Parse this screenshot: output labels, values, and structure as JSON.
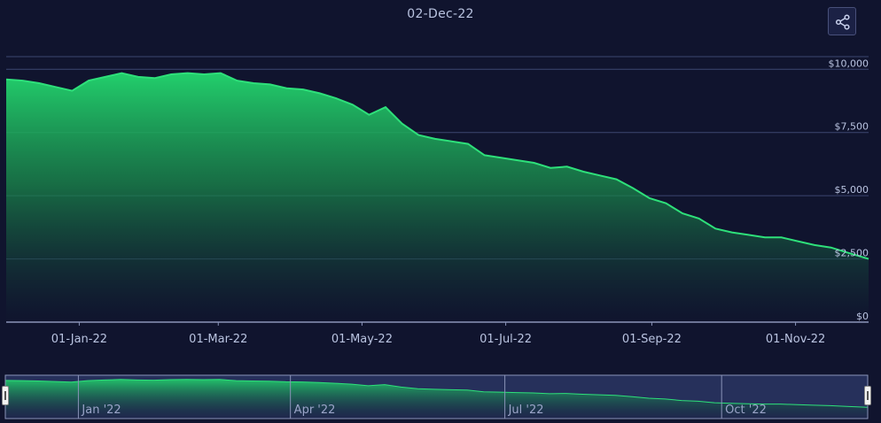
{
  "header": {
    "date_label": "02-Dec-22"
  },
  "toolbar": {
    "share_icon": "share-icon"
  },
  "colors": {
    "background": "#10142e",
    "line": "#2ee07a",
    "area_top": "#22cf6c",
    "grid": "#3c4670",
    "navigator_mask": "#2a3563"
  },
  "chart_data": {
    "type": "area",
    "title": "02-Dec-22",
    "y_ticks": [
      "$0",
      "$2,500",
      "$5,000",
      "$7,500",
      "$10,000"
    ],
    "ylim": [
      0,
      10500
    ],
    "x_ticks": [
      {
        "date": "2022-01-01",
        "label": "01-Jan-22"
      },
      {
        "date": "2022-03-01",
        "label": "01-Mar-22"
      },
      {
        "date": "2022-05-01",
        "label": "01-May-22"
      },
      {
        "date": "2022-07-01",
        "label": "01-Jul-22"
      },
      {
        "date": "2022-09-01",
        "label": "01-Sep-22"
      },
      {
        "date": "2022-11-01",
        "label": "01-Nov-22"
      }
    ],
    "xlim": [
      "2021-12-01",
      "2022-12-02"
    ],
    "grid": true,
    "series": [
      {
        "values": [
          {
            "x": "2021-12-01",
            "y": 9600
          },
          {
            "x": "2021-12-08",
            "y": 9550
          },
          {
            "x": "2021-12-15",
            "y": 9450
          },
          {
            "x": "2021-12-22",
            "y": 9300
          },
          {
            "x": "2021-12-29",
            "y": 9150
          },
          {
            "x": "2022-01-05",
            "y": 9550
          },
          {
            "x": "2022-01-12",
            "y": 9700
          },
          {
            "x": "2022-01-19",
            "y": 9850
          },
          {
            "x": "2022-01-26",
            "y": 9700
          },
          {
            "x": "2022-02-02",
            "y": 9650
          },
          {
            "x": "2022-02-09",
            "y": 9800
          },
          {
            "x": "2022-02-16",
            "y": 9850
          },
          {
            "x": "2022-02-23",
            "y": 9800
          },
          {
            "x": "2022-03-02",
            "y": 9850
          },
          {
            "x": "2022-03-09",
            "y": 9550
          },
          {
            "x": "2022-03-16",
            "y": 9450
          },
          {
            "x": "2022-03-23",
            "y": 9400
          },
          {
            "x": "2022-03-30",
            "y": 9250
          },
          {
            "x": "2022-04-06",
            "y": 9200
          },
          {
            "x": "2022-04-13",
            "y": 9050
          },
          {
            "x": "2022-04-20",
            "y": 8850
          },
          {
            "x": "2022-04-27",
            "y": 8600
          },
          {
            "x": "2022-05-04",
            "y": 8200
          },
          {
            "x": "2022-05-11",
            "y": 8500
          },
          {
            "x": "2022-05-18",
            "y": 7850
          },
          {
            "x": "2022-05-25",
            "y": 7400
          },
          {
            "x": "2022-06-01",
            "y": 7250
          },
          {
            "x": "2022-06-08",
            "y": 7150
          },
          {
            "x": "2022-06-15",
            "y": 7050
          },
          {
            "x": "2022-06-22",
            "y": 6600
          },
          {
            "x": "2022-06-29",
            "y": 6500
          },
          {
            "x": "2022-07-06",
            "y": 6400
          },
          {
            "x": "2022-07-13",
            "y": 6300
          },
          {
            "x": "2022-07-20",
            "y": 6100
          },
          {
            "x": "2022-07-27",
            "y": 6150
          },
          {
            "x": "2022-08-03",
            "y": 5950
          },
          {
            "x": "2022-08-10",
            "y": 5800
          },
          {
            "x": "2022-08-17",
            "y": 5650
          },
          {
            "x": "2022-08-24",
            "y": 5300
          },
          {
            "x": "2022-08-31",
            "y": 4900
          },
          {
            "x": "2022-09-07",
            "y": 4700
          },
          {
            "x": "2022-09-14",
            "y": 4300
          },
          {
            "x": "2022-09-21",
            "y": 4100
          },
          {
            "x": "2022-09-28",
            "y": 3700
          },
          {
            "x": "2022-10-05",
            "y": 3550
          },
          {
            "x": "2022-10-12",
            "y": 3450
          },
          {
            "x": "2022-10-19",
            "y": 3350
          },
          {
            "x": "2022-10-26",
            "y": 3350
          },
          {
            "x": "2022-11-02",
            "y": 3200
          },
          {
            "x": "2022-11-09",
            "y": 3050
          },
          {
            "x": "2022-11-16",
            "y": 2950
          },
          {
            "x": "2022-11-23",
            "y": 2750
          },
          {
            "x": "2022-12-02",
            "y": 2500
          }
        ]
      }
    ],
    "navigator": {
      "labels": [
        {
          "date": "2022-01-01",
          "label": "Jan '22"
        },
        {
          "date": "2022-04-01",
          "label": "Apr '22"
        },
        {
          "date": "2022-07-01",
          "label": "Jul '22"
        },
        {
          "date": "2022-10-01",
          "label": "Oct '22"
        }
      ],
      "selected_range": [
        "2021-12-01",
        "2022-12-02"
      ]
    }
  }
}
